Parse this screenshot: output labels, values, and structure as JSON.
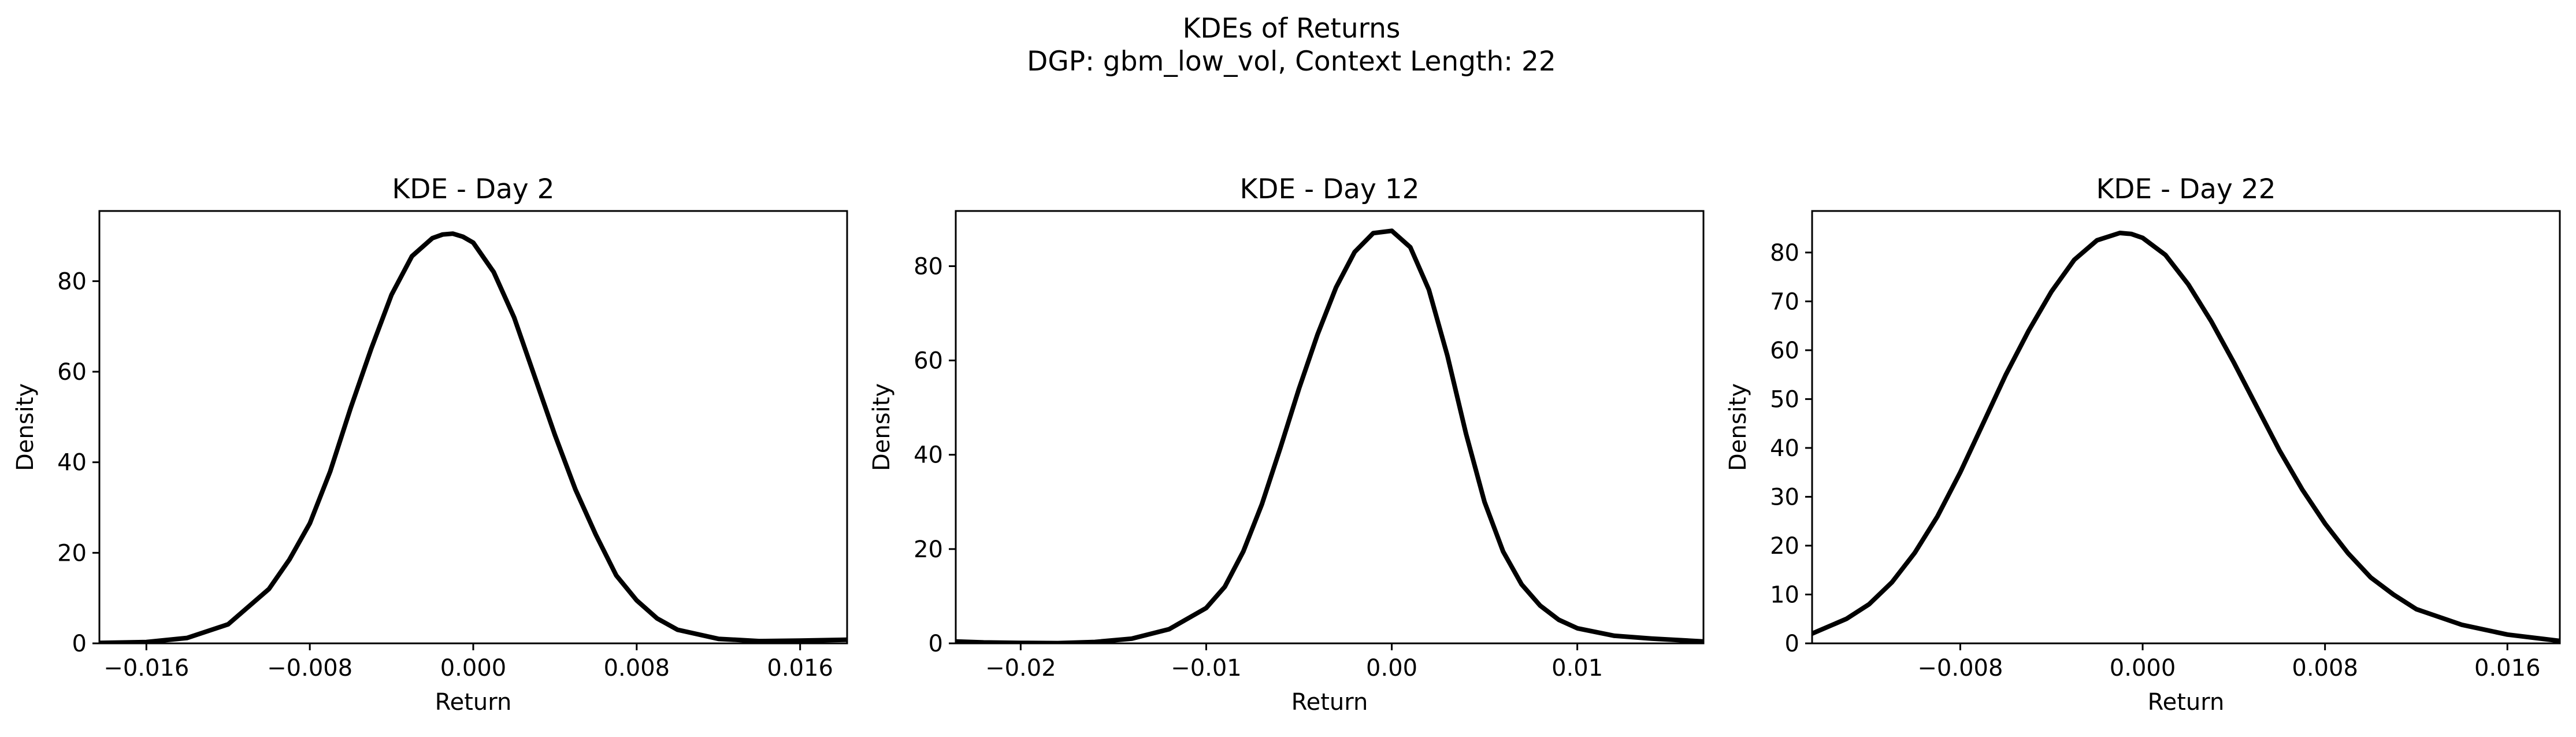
{
  "figure": {
    "suptitle_line1": "KDEs of Returns",
    "suptitle_line2": "DGP: gbm_low_vol, Context Length: 22"
  },
  "chart_data": [
    {
      "type": "line",
      "title": "KDE - Day 2",
      "xlabel": "Return",
      "ylabel": "Density",
      "xlim": [
        -0.0183,
        0.0183
      ],
      "ylim": [
        0,
        95.5
      ],
      "xticks": [
        -0.016,
        -0.008,
        0.0,
        0.008,
        0.016
      ],
      "xtick_labels": [
        "−0.016",
        "−0.008",
        "0.000",
        "0.008",
        "0.016"
      ],
      "yticks": [
        0,
        20,
        40,
        60,
        80
      ],
      "ytick_labels": [
        "0",
        "20",
        "40",
        "60",
        "80"
      ],
      "series": [
        {
          "color": "#000000",
          "x": [
            -0.0183,
            -0.016,
            -0.014,
            -0.012,
            -0.01,
            -0.009,
            -0.008,
            -0.007,
            -0.006,
            -0.005,
            -0.004,
            -0.003,
            -0.002,
            -0.0015,
            -0.001,
            -0.0005,
            0.0,
            0.001,
            0.002,
            0.003,
            0.004,
            0.005,
            0.006,
            0.007,
            0.008,
            0.009,
            0.01,
            0.012,
            0.014,
            0.016,
            0.0183
          ],
          "y": [
            0.1,
            0.3,
            1.2,
            4.2,
            12.0,
            18.5,
            26.5,
            38.0,
            52.0,
            65.0,
            77.0,
            85.5,
            89.5,
            90.3,
            90.5,
            89.8,
            88.5,
            82.0,
            72.0,
            59.0,
            46.0,
            34.0,
            24.0,
            15.0,
            9.5,
            5.5,
            3.0,
            1.0,
            0.5,
            0.6,
            0.8
          ]
        }
      ]
    },
    {
      "type": "line",
      "title": "KDE - Day 12",
      "xlabel": "Return",
      "ylabel": "Density",
      "xlim": [
        -0.0235,
        0.0168
      ],
      "ylim": [
        0,
        91.7
      ],
      "xticks": [
        -0.02,
        -0.01,
        0.0,
        0.01
      ],
      "xtick_labels": [
        "−0.02",
        "−0.01",
        "0.00",
        "0.01"
      ],
      "yticks": [
        0,
        20,
        40,
        60,
        80
      ],
      "ytick_labels": [
        "0",
        "20",
        "40",
        "60",
        "80"
      ],
      "series": [
        {
          "color": "#000000",
          "x": [
            -0.0235,
            -0.022,
            -0.02,
            -0.018,
            -0.016,
            -0.014,
            -0.012,
            -0.01,
            -0.009,
            -0.008,
            -0.007,
            -0.006,
            -0.005,
            -0.004,
            -0.003,
            -0.002,
            -0.001,
            0.0,
            0.001,
            0.002,
            0.003,
            0.004,
            0.005,
            0.006,
            0.007,
            0.008,
            0.009,
            0.01,
            0.012,
            0.014,
            0.0168
          ],
          "y": [
            0.4,
            0.2,
            0.1,
            0.05,
            0.3,
            1.0,
            3.0,
            7.5,
            12.0,
            19.5,
            29.5,
            41.5,
            54.0,
            65.5,
            75.5,
            83.0,
            87.0,
            87.5,
            84.0,
            75.0,
            61.0,
            44.5,
            30.0,
            19.5,
            12.5,
            8.0,
            5.0,
            3.2,
            1.6,
            1.0,
            0.4
          ]
        }
      ]
    },
    {
      "type": "line",
      "title": "KDE - Day 22",
      "xlabel": "Return",
      "ylabel": "Density",
      "xlim": [
        -0.0145,
        0.0183
      ],
      "ylim": [
        0,
        88.5
      ],
      "xticks": [
        -0.008,
        0.0,
        0.008,
        0.016
      ],
      "xtick_labels": [
        "−0.008",
        "0.000",
        "0.008",
        "0.016"
      ],
      "yticks": [
        0,
        10,
        20,
        30,
        40,
        50,
        60,
        70,
        80
      ],
      "ytick_labels": [
        "0",
        "10",
        "20",
        "30",
        "40",
        "50",
        "60",
        "70",
        "80"
      ],
      "series": [
        {
          "color": "#000000",
          "x": [
            -0.0145,
            -0.013,
            -0.012,
            -0.011,
            -0.01,
            -0.009,
            -0.008,
            -0.007,
            -0.006,
            -0.005,
            -0.004,
            -0.003,
            -0.002,
            -0.001,
            -0.0005,
            0.0,
            0.001,
            0.002,
            0.003,
            0.004,
            0.005,
            0.006,
            0.007,
            0.008,
            0.009,
            0.01,
            0.011,
            0.012,
            0.014,
            0.016,
            0.0183
          ],
          "y": [
            2.0,
            5.0,
            8.0,
            12.5,
            18.5,
            26.0,
            35.0,
            45.0,
            55.0,
            64.0,
            72.0,
            78.5,
            82.5,
            84.0,
            83.8,
            83.0,
            79.5,
            73.5,
            66.0,
            57.5,
            48.5,
            39.5,
            31.5,
            24.5,
            18.5,
            13.5,
            10.0,
            7.0,
            3.8,
            1.8,
            0.5
          ]
        }
      ]
    }
  ]
}
